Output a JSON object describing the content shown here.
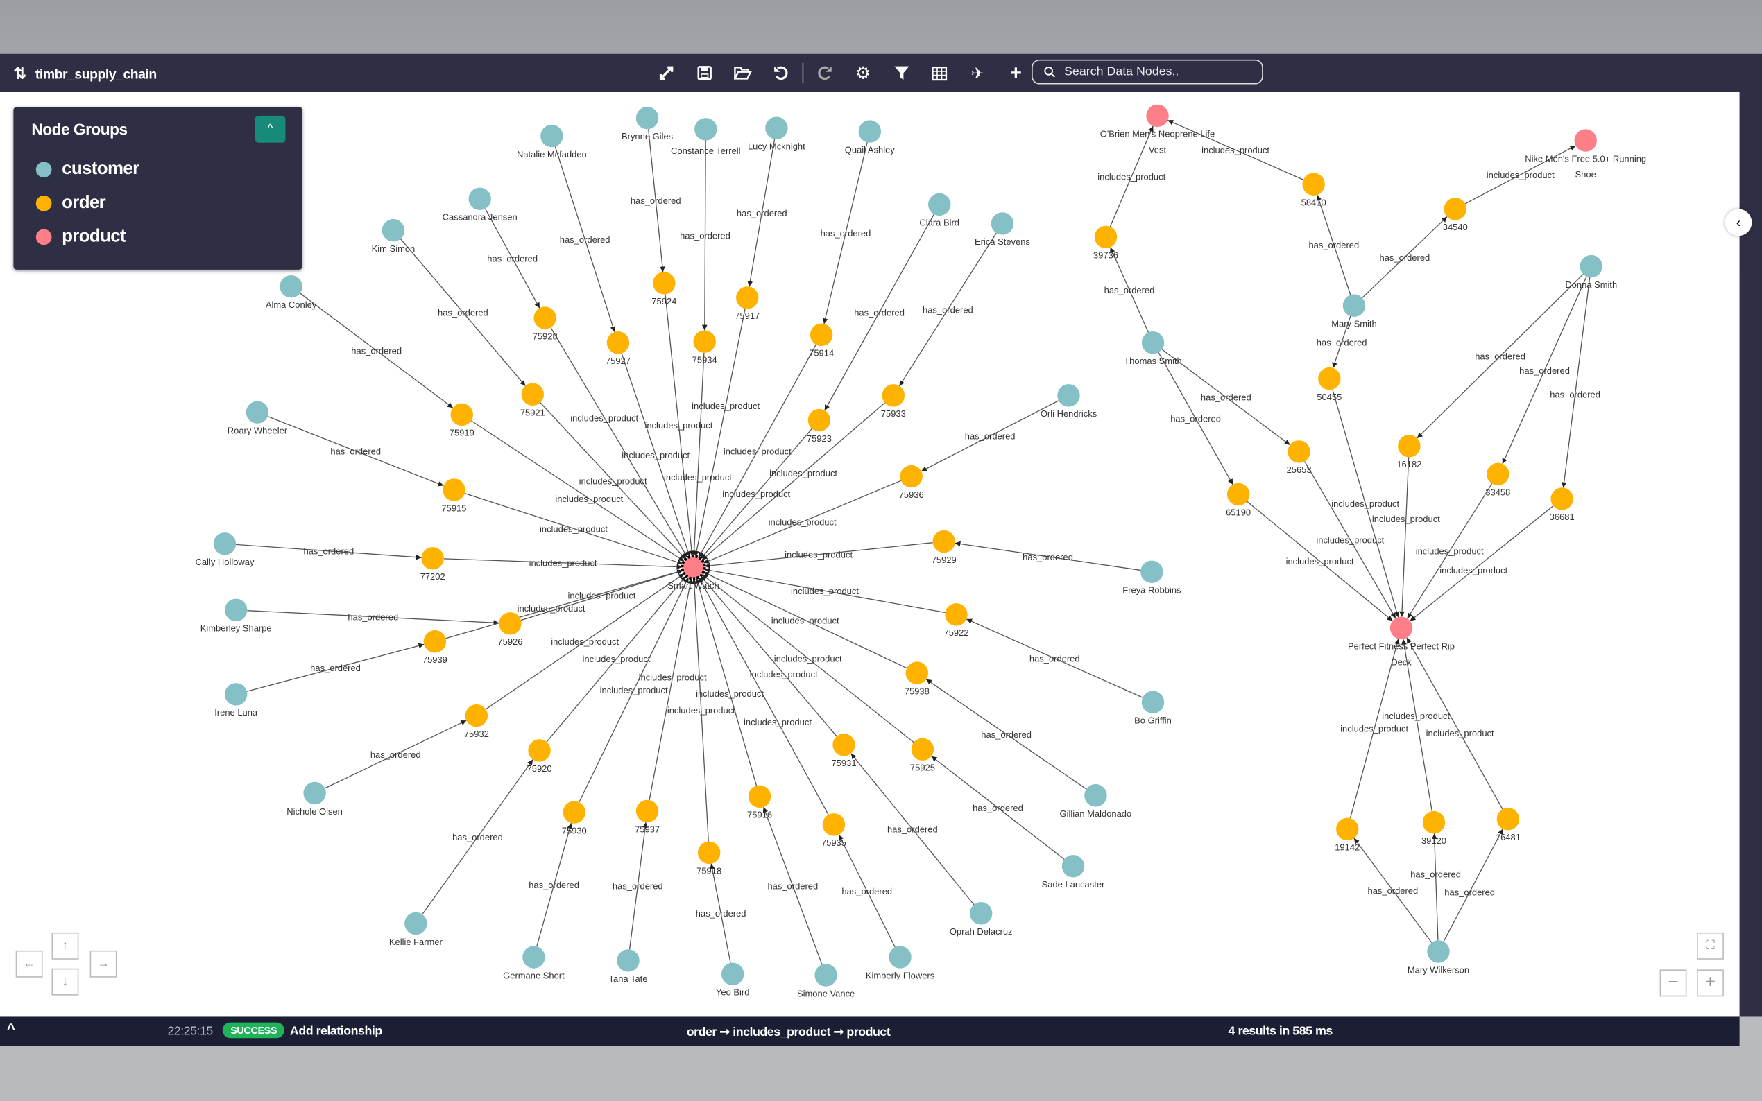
{
  "app": {
    "title": "timbr_supply_chain",
    "search_placeholder": "Search Data Nodes.."
  },
  "toolbar": {
    "icons": [
      "collapse-icon",
      "save-icon",
      "open-folder-icon",
      "undo-icon",
      "redo-icon",
      "settings-icon",
      "filter-icon",
      "table-icon",
      "plane-icon",
      "add-icon"
    ]
  },
  "legend": {
    "title": "Node Groups",
    "groups": [
      {
        "name": "customer",
        "color": "#84c0c6"
      },
      {
        "name": "order",
        "color": "#ffb300"
      },
      {
        "name": "product",
        "color": "#ff7f88"
      }
    ]
  },
  "status": {
    "time": "22:25:15",
    "badge": "SUCCESS",
    "message": "Add relationship",
    "query": "order ➞ includes_product ➞ product",
    "results": "4 results in 585 ms"
  },
  "graph": {
    "nodes": [
      {
        "id": "p1",
        "label": "Smart Watch",
        "group": "product"
      },
      {
        "id": "p2",
        "label": "Perfect Fitness Perfect Rip Deck",
        "group": "product"
      },
      {
        "id": "p3",
        "label": "O'Brien Men's Neoprene Life Vest",
        "group": "product"
      },
      {
        "id": "p4",
        "label": "Nike Men's Free 5.0+ Running Shoe",
        "group": "product"
      },
      {
        "id": "c1",
        "label": "Natalie Mcfadden",
        "group": "customer"
      },
      {
        "id": "o1",
        "label": "75927",
        "group": "order"
      },
      {
        "id": "c2",
        "label": "Brynne Giles",
        "group": "customer"
      },
      {
        "id": "o2",
        "label": "75924",
        "group": "order"
      },
      {
        "id": "c3",
        "label": "Constance Terrell",
        "group": "customer"
      },
      {
        "id": "o3",
        "label": "75934",
        "group": "order"
      },
      {
        "id": "c4",
        "label": "Lucy Mcknight",
        "group": "customer"
      },
      {
        "id": "o4",
        "label": "75917",
        "group": "order"
      },
      {
        "id": "c5",
        "label": "Quail Ashley",
        "group": "customer"
      },
      {
        "id": "o5",
        "label": "75914",
        "group": "order"
      },
      {
        "id": "c6",
        "label": "Cassandra Jensen",
        "group": "customer"
      },
      {
        "id": "o6",
        "label": "75928",
        "group": "order"
      },
      {
        "id": "c7",
        "label": "Kim Simon",
        "group": "customer"
      },
      {
        "id": "o7",
        "label": "75921",
        "group": "order"
      },
      {
        "id": "c8",
        "label": "Clara Bird",
        "group": "customer"
      },
      {
        "id": "o8",
        "label": "75923",
        "group": "order"
      },
      {
        "id": "c9",
        "label": "Erica Stevens",
        "group": "customer"
      },
      {
        "id": "o9",
        "label": "75933",
        "group": "order"
      },
      {
        "id": "c10",
        "label": "Alma Conley",
        "group": "customer"
      },
      {
        "id": "o10",
        "label": "75919",
        "group": "order"
      },
      {
        "id": "c11",
        "label": "Roary Wheeler",
        "group": "customer"
      },
      {
        "id": "o11",
        "label": "75915",
        "group": "order"
      },
      {
        "id": "c12",
        "label": "Orli Hendricks",
        "group": "customer"
      },
      {
        "id": "o12",
        "label": "75936",
        "group": "order"
      },
      {
        "id": "c13",
        "label": "Cally Holloway",
        "group": "customer"
      },
      {
        "id": "o13",
        "label": "77202",
        "group": "order"
      },
      {
        "id": "c14",
        "label": "Freya Robbins",
        "group": "customer"
      },
      {
        "id": "o14",
        "label": "75929",
        "group": "order"
      },
      {
        "id": "c15",
        "label": "Kimberley Sharpe",
        "group": "customer"
      },
      {
        "id": "o15",
        "label": "75926",
        "group": "order"
      },
      {
        "id": "c16",
        "label": "Irene Luna",
        "group": "customer"
      },
      {
        "id": "o16",
        "label": "75939",
        "group": "order"
      },
      {
        "id": "c17",
        "label": "Bo Griffin",
        "group": "customer"
      },
      {
        "id": "o17",
        "label": "75922",
        "group": "order"
      },
      {
        "id": "c18",
        "label": "Nichole Olsen",
        "group": "customer"
      },
      {
        "id": "o18",
        "label": "75932",
        "group": "order"
      },
      {
        "id": "c19",
        "label": "Gillian Maldonado",
        "group": "customer"
      },
      {
        "id": "o19",
        "label": "75938",
        "group": "order"
      },
      {
        "id": "c20",
        "label": "Kellie Farmer",
        "group": "customer"
      },
      {
        "id": "o20",
        "label": "75920",
        "group": "order"
      },
      {
        "id": "c21",
        "label": "Sade Lancaster",
        "group": "customer"
      },
      {
        "id": "o21",
        "label": "75925",
        "group": "order"
      },
      {
        "id": "c22",
        "label": "Germane Short",
        "group": "customer"
      },
      {
        "id": "o22",
        "label": "75930",
        "group": "order"
      },
      {
        "id": "c23",
        "label": "Tana Tate",
        "group": "customer"
      },
      {
        "id": "o23",
        "label": "75937",
        "group": "order"
      },
      {
        "id": "c24",
        "label": "Yeo Bird",
        "group": "customer"
      },
      {
        "id": "o24",
        "label": "75918",
        "group": "order"
      },
      {
        "id": "c25",
        "label": "Simone Vance",
        "group": "customer"
      },
      {
        "id": "o25",
        "label": "75916",
        "group": "order"
      },
      {
        "id": "c26",
        "label": "Kimberly Flowers",
        "group": "customer"
      },
      {
        "id": "o26",
        "label": "75935",
        "group": "order"
      },
      {
        "id": "c27",
        "label": "Oprah Delacruz",
        "group": "customer"
      },
      {
        "id": "o27",
        "label": "75931",
        "group": "order"
      },
      {
        "id": "c28",
        "label": "Thomas Smith",
        "group": "customer"
      },
      {
        "id": "o28",
        "label": "39736",
        "group": "order"
      },
      {
        "id": "o29",
        "label": "25653",
        "group": "order"
      },
      {
        "id": "o30",
        "label": "65190",
        "group": "order"
      },
      {
        "id": "c29",
        "label": "Mary Smith",
        "group": "customer"
      },
      {
        "id": "o31",
        "label": "58410",
        "group": "order"
      },
      {
        "id": "o32",
        "label": "34540",
        "group": "order"
      },
      {
        "id": "o33",
        "label": "50455",
        "group": "order"
      },
      {
        "id": "c30",
        "label": "Donna Smith",
        "group": "customer"
      },
      {
        "id": "o34",
        "label": "16182",
        "group": "order"
      },
      {
        "id": "o35",
        "label": "33458",
        "group": "order"
      },
      {
        "id": "o36",
        "label": "36681",
        "group": "order"
      },
      {
        "id": "c31",
        "label": "Mary Wilkerson",
        "group": "customer"
      },
      {
        "id": "o37",
        "label": "19142",
        "group": "order"
      },
      {
        "id": "o38",
        "label": "39120",
        "group": "order"
      },
      {
        "id": "o39",
        "label": "16481",
        "group": "order"
      }
    ],
    "edge_labels": {
      "has_ordered": "has_ordered",
      "includes_product": "includes_product"
    },
    "edges": [
      [
        "c1",
        "o1",
        "has_ordered"
      ],
      [
        "c2",
        "o2",
        "has_ordered"
      ],
      [
        "c3",
        "o3",
        "has_ordered"
      ],
      [
        "c4",
        "o4",
        "has_ordered"
      ],
      [
        "c5",
        "o5",
        "has_ordered"
      ],
      [
        "c6",
        "o6",
        "has_ordered"
      ],
      [
        "c7",
        "o7",
        "has_ordered"
      ],
      [
        "c8",
        "o8",
        "has_ordered"
      ],
      [
        "c9",
        "o9",
        "has_ordered"
      ],
      [
        "c10",
        "o10",
        "has_ordered"
      ],
      [
        "c11",
        "o11",
        "has_ordered"
      ],
      [
        "c12",
        "o12",
        "has_ordered"
      ],
      [
        "c13",
        "o13",
        "has_ordered"
      ],
      [
        "c14",
        "o14",
        "has_ordered"
      ],
      [
        "c15",
        "o15",
        "has_ordered"
      ],
      [
        "c16",
        "o16",
        "has_ordered"
      ],
      [
        "c17",
        "o17",
        "has_ordered"
      ],
      [
        "c18",
        "o18",
        "has_ordered"
      ],
      [
        "c19",
        "o19",
        "has_ordered"
      ],
      [
        "c20",
        "o20",
        "has_ordered"
      ],
      [
        "c21",
        "o21",
        "has_ordered"
      ],
      [
        "c22",
        "o22",
        "has_ordered"
      ],
      [
        "c23",
        "o23",
        "has_ordered"
      ],
      [
        "c24",
        "o24",
        "has_ordered"
      ],
      [
        "c25",
        "o25",
        "has_ordered"
      ],
      [
        "c26",
        "o26",
        "has_ordered"
      ],
      [
        "c27",
        "o27",
        "has_ordered"
      ],
      [
        "o1",
        "p1",
        "includes_product"
      ],
      [
        "o2",
        "p1",
        "includes_product"
      ],
      [
        "o3",
        "p1",
        "includes_product"
      ],
      [
        "o4",
        "p1",
        "includes_product"
      ],
      [
        "o5",
        "p1",
        "includes_product"
      ],
      [
        "o6",
        "p1",
        "includes_product"
      ],
      [
        "o7",
        "p1",
        "includes_product"
      ],
      [
        "o8",
        "p1",
        "includes_product"
      ],
      [
        "o9",
        "p1",
        "includes_product"
      ],
      [
        "o10",
        "p1",
        "includes_product"
      ],
      [
        "o11",
        "p1",
        "includes_product"
      ],
      [
        "o12",
        "p1",
        "includes_product"
      ],
      [
        "o13",
        "p1",
        "includes_product"
      ],
      [
        "o14",
        "p1",
        "includes_product"
      ],
      [
        "o15",
        "p1",
        "includes_product"
      ],
      [
        "o16",
        "p1",
        "includes_product"
      ],
      [
        "o17",
        "p1",
        "includes_product"
      ],
      [
        "o18",
        "p1",
        "includes_product"
      ],
      [
        "o19",
        "p1",
        "includes_product"
      ],
      [
        "o20",
        "p1",
        "includes_product"
      ],
      [
        "o21",
        "p1",
        "includes_product"
      ],
      [
        "o22",
        "p1",
        "includes_product"
      ],
      [
        "o23",
        "p1",
        "includes_product"
      ],
      [
        "o24",
        "p1",
        "includes_product"
      ],
      [
        "o25",
        "p1",
        "includes_product"
      ],
      [
        "o26",
        "p1",
        "includes_product"
      ],
      [
        "o27",
        "p1",
        "includes_product"
      ],
      [
        "c28",
        "o28",
        "has_ordered"
      ],
      [
        "c28",
        "o29",
        "has_ordered"
      ],
      [
        "c28",
        "o30",
        "has_ordered"
      ],
      [
        "o28",
        "p3",
        "includes_product"
      ],
      [
        "o29",
        "p2",
        "includes_product"
      ],
      [
        "o30",
        "p2",
        "includes_product"
      ],
      [
        "c29",
        "o31",
        "has_ordered"
      ],
      [
        "c29",
        "o32",
        "has_ordered"
      ],
      [
        "c29",
        "o33",
        "has_ordered"
      ],
      [
        "o31",
        "p3",
        "includes_product"
      ],
      [
        "o32",
        "p4",
        "includes_product"
      ],
      [
        "o33",
        "p2",
        "includes_product"
      ],
      [
        "c30",
        "o34",
        "has_ordered"
      ],
      [
        "c30",
        "o35",
        "has_ordered"
      ],
      [
        "c30",
        "o36",
        "has_ordered"
      ],
      [
        "o34",
        "p2",
        "includes_product"
      ],
      [
        "o35",
        "p2",
        "includes_product"
      ],
      [
        "o36",
        "p2",
        "includes_product"
      ],
      [
        "c31",
        "o37",
        "has_ordered"
      ],
      [
        "c31",
        "o38",
        "has_ordered"
      ],
      [
        "c31",
        "o39",
        "has_ordered"
      ],
      [
        "o37",
        "p2",
        "includes_product"
      ],
      [
        "o38",
        "p2",
        "includes_product"
      ],
      [
        "o39",
        "p2",
        "includes_product"
      ]
    ]
  }
}
